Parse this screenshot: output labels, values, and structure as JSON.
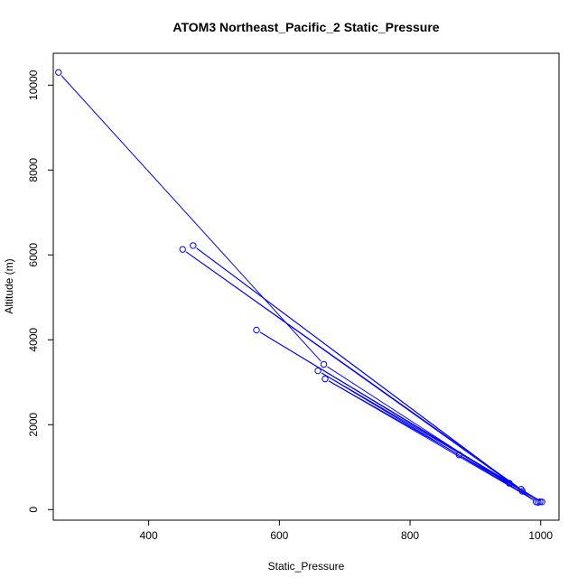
{
  "chart_data": {
    "type": "line",
    "title": "ATOM3 Northeast_Pacific_2 Static_Pressure",
    "xlabel": "Static_Pressure",
    "ylabel": "Altitude (m)",
    "xlim": [
      254,
      1028
    ],
    "ylim": [
      -250,
      10750
    ],
    "xticks": [
      400,
      600,
      800,
      1000
    ],
    "yticks": [
      0,
      2000,
      4000,
      6000,
      8000,
      10000
    ],
    "grid": false,
    "series_color": "#0000ff",
    "series": [
      {
        "points": [
          {
            "x": 262,
            "y": 10300
          },
          {
            "x": 668,
            "y": 3420
          },
          {
            "x": 993,
            "y": 180
          },
          {
            "x": 468,
            "y": 6220
          },
          {
            "x": 972,
            "y": 430
          },
          {
            "x": 452,
            "y": 6130
          },
          {
            "x": 970,
            "y": 480
          },
          {
            "x": 659,
            "y": 3270
          },
          {
            "x": 996,
            "y": 170
          },
          {
            "x": 670,
            "y": 3080
          },
          {
            "x": 875,
            "y": 1290
          },
          {
            "x": 1002,
            "y": 180
          },
          {
            "x": 565,
            "y": 4230
          },
          {
            "x": 952,
            "y": 620
          },
          {
            "x": 999,
            "y": 185
          }
        ]
      }
    ]
  }
}
